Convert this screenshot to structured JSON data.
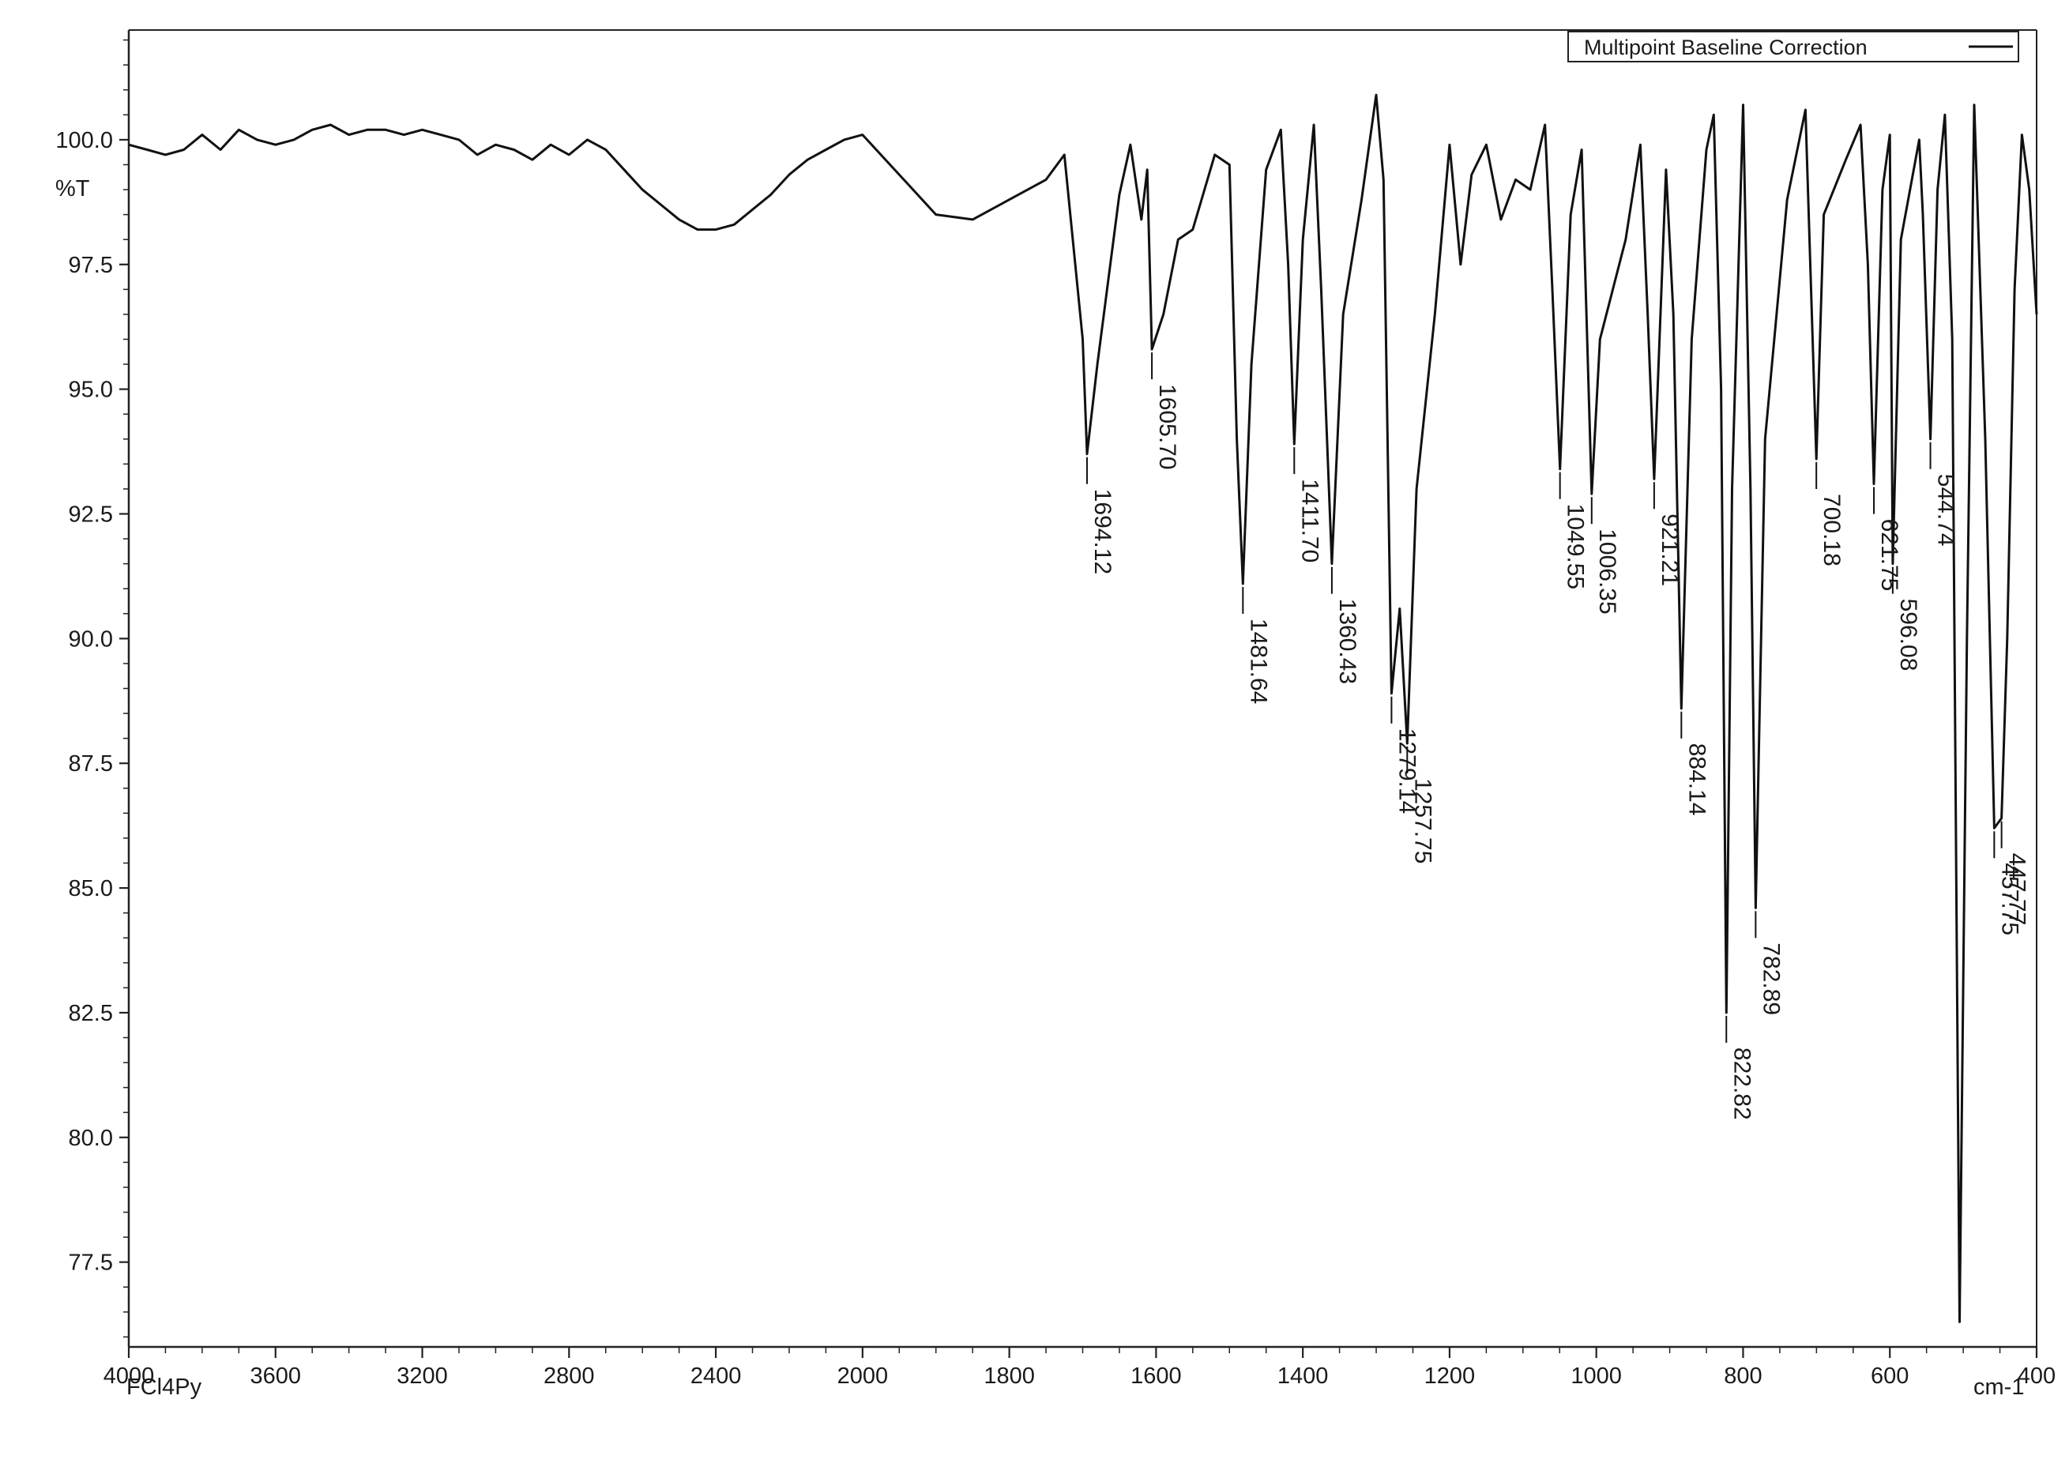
{
  "chart_data": {
    "type": "line",
    "legend": {
      "label": "Multipoint Baseline Correction",
      "placement": "top-right"
    },
    "y_axis_label": "%T",
    "x_axis_label": "cm-1",
    "sample_label": "FCl4Py",
    "xlim": [
      4000,
      400
    ],
    "ylim": [
      75.8,
      102.2
    ],
    "x_ticks": [
      4000,
      3600,
      3200,
      2800,
      2400,
      2000,
      1800,
      1600,
      1400,
      1200,
      1000,
      800,
      600,
      400
    ],
    "x_tick_labels": [
      "4000",
      "3600",
      "3200",
      "2800",
      "2400",
      "2000",
      "1800",
      "1600",
      "1400",
      "1200",
      "1000",
      "800",
      "600",
      "400"
    ],
    "y_ticks": [
      77.5,
      80.0,
      82.5,
      85.0,
      87.5,
      90.0,
      92.5,
      95.0,
      97.5,
      100.0
    ],
    "y_tick_labels": [
      "77.5",
      "80.0",
      "82.5",
      "85.0",
      "87.5",
      "90.0",
      "92.5",
      "95.0",
      "97.5",
      "100.0"
    ],
    "series": [
      {
        "name": "Multipoint Baseline Correction",
        "color": "#111111",
        "points": [
          [
            4000,
            99.9
          ],
          [
            3950,
            99.8
          ],
          [
            3900,
            99.7
          ],
          [
            3850,
            99.8
          ],
          [
            3800,
            100.1
          ],
          [
            3750,
            99.8
          ],
          [
            3700,
            100.2
          ],
          [
            3650,
            100.0
          ],
          [
            3600,
            99.9
          ],
          [
            3550,
            100.0
          ],
          [
            3500,
            100.2
          ],
          [
            3450,
            100.3
          ],
          [
            3400,
            100.1
          ],
          [
            3350,
            100.2
          ],
          [
            3300,
            100.2
          ],
          [
            3250,
            100.1
          ],
          [
            3200,
            100.2
          ],
          [
            3150,
            100.1
          ],
          [
            3100,
            100.0
          ],
          [
            3050,
            99.7
          ],
          [
            3000,
            99.9
          ],
          [
            2950,
            99.8
          ],
          [
            2900,
            99.6
          ],
          [
            2850,
            99.9
          ],
          [
            2800,
            99.7
          ],
          [
            2750,
            100.0
          ],
          [
            2700,
            99.8
          ],
          [
            2650,
            99.4
          ],
          [
            2600,
            99.0
          ],
          [
            2550,
            98.7
          ],
          [
            2500,
            98.4
          ],
          [
            2450,
            98.2
          ],
          [
            2400,
            98.2
          ],
          [
            2350,
            98.3
          ],
          [
            2300,
            98.6
          ],
          [
            2250,
            98.9
          ],
          [
            2200,
            99.3
          ],
          [
            2150,
            99.6
          ],
          [
            2100,
            99.8
          ],
          [
            2050,
            100.0
          ],
          [
            2000,
            100.1
          ],
          [
            1950,
            99.3
          ],
          [
            1900,
            98.5
          ],
          [
            1850,
            98.4
          ],
          [
            1800,
            98.8
          ],
          [
            1750,
            99.2
          ],
          [
            1725,
            99.7
          ],
          [
            1700,
            96.0
          ],
          [
            1694.12,
            93.7
          ],
          [
            1680,
            95.5
          ],
          [
            1650,
            98.9
          ],
          [
            1635,
            99.9
          ],
          [
            1620,
            98.4
          ],
          [
            1612,
            99.4
          ],
          [
            1605.7,
            95.8
          ],
          [
            1590,
            96.5
          ],
          [
            1570,
            98.0
          ],
          [
            1550,
            98.2
          ],
          [
            1520,
            99.7
          ],
          [
            1500,
            99.5
          ],
          [
            1490,
            94.0
          ],
          [
            1481.64,
            91.1
          ],
          [
            1470,
            95.5
          ],
          [
            1450,
            99.4
          ],
          [
            1430,
            100.2
          ],
          [
            1420,
            97.5
          ],
          [
            1411.7,
            93.9
          ],
          [
            1400,
            98.0
          ],
          [
            1385,
            100.3
          ],
          [
            1375,
            97.0
          ],
          [
            1360.43,
            91.5
          ],
          [
            1345,
            96.5
          ],
          [
            1320,
            98.8
          ],
          [
            1300,
            100.9
          ],
          [
            1290,
            99.2
          ],
          [
            1279.14,
            88.9
          ],
          [
            1268,
            90.6
          ],
          [
            1257.75,
            87.9
          ],
          [
            1245,
            93.0
          ],
          [
            1220,
            96.5
          ],
          [
            1200,
            99.9
          ],
          [
            1185,
            97.5
          ],
          [
            1170,
            99.3
          ],
          [
            1150,
            99.9
          ],
          [
            1130,
            98.4
          ],
          [
            1110,
            99.2
          ],
          [
            1090,
            99.0
          ],
          [
            1070,
            100.3
          ],
          [
            1060,
            97.0
          ],
          [
            1049.55,
            93.4
          ],
          [
            1035,
            98.5
          ],
          [
            1020,
            99.8
          ],
          [
            1006.35,
            92.9
          ],
          [
            995,
            96.0
          ],
          [
            960,
            98.0
          ],
          [
            940,
            99.9
          ],
          [
            930,
            96.5
          ],
          [
            921.21,
            93.2
          ],
          [
            905,
            99.4
          ],
          [
            895,
            96.5
          ],
          [
            884.14,
            88.6
          ],
          [
            870,
            96.0
          ],
          [
            850,
            99.8
          ],
          [
            840,
            100.5
          ],
          [
            830,
            95.0
          ],
          [
            822.82,
            82.5
          ],
          [
            815,
            93.0
          ],
          [
            800,
            100.7
          ],
          [
            790,
            93.0
          ],
          [
            782.89,
            84.6
          ],
          [
            770,
            94.0
          ],
          [
            740,
            98.8
          ],
          [
            715,
            100.6
          ],
          [
            700.18,
            93.6
          ],
          [
            690,
            98.5
          ],
          [
            660,
            99.6
          ],
          [
            640,
            100.3
          ],
          [
            630,
            97.5
          ],
          [
            621.75,
            93.1
          ],
          [
            610,
            99.0
          ],
          [
            600,
            100.1
          ],
          [
            596.08,
            91.5
          ],
          [
            585,
            98.0
          ],
          [
            560,
            100.0
          ],
          [
            555,
            98.5
          ],
          [
            544.74,
            94.0
          ],
          [
            535,
            99.0
          ],
          [
            525,
            100.5
          ],
          [
            515,
            96.0
          ],
          [
            505,
            76.3
          ],
          [
            495,
            90.0
          ],
          [
            485,
            100.7
          ],
          [
            470,
            94.0
          ],
          [
            457.75,
            86.2
          ],
          [
            447.77,
            86.4
          ],
          [
            440,
            90.0
          ],
          [
            430,
            97.0
          ],
          [
            420,
            100.1
          ],
          [
            410,
            99.0
          ],
          [
            400,
            96.5
          ]
        ]
      }
    ],
    "peaks": [
      {
        "x": 1694.12,
        "y": 93.7,
        "label": "1694.12"
      },
      {
        "x": 1605.7,
        "y": 95.8,
        "label": "1605.70"
      },
      {
        "x": 1481.64,
        "y": 91.1,
        "label": "1481.64"
      },
      {
        "x": 1411.7,
        "y": 93.9,
        "label": "1411.70"
      },
      {
        "x": 1360.43,
        "y": 91.5,
        "label": "1360.43"
      },
      {
        "x": 1279.14,
        "y": 88.9,
        "label": "1279.14"
      },
      {
        "x": 1257.75,
        "y": 87.9,
        "label": "1257.75"
      },
      {
        "x": 1049.55,
        "y": 93.4,
        "label": "1049.55"
      },
      {
        "x": 1006.35,
        "y": 92.9,
        "label": "1006.35"
      },
      {
        "x": 921.21,
        "y": 93.2,
        "label": "921.21"
      },
      {
        "x": 884.14,
        "y": 88.6,
        "label": "884.14"
      },
      {
        "x": 822.82,
        "y": 82.5,
        "label": "822.82"
      },
      {
        "x": 782.89,
        "y": 84.6,
        "label": "782.89"
      },
      {
        "x": 700.18,
        "y": 93.6,
        "label": "700.18"
      },
      {
        "x": 621.75,
        "y": 93.1,
        "label": "621.75"
      },
      {
        "x": 596.08,
        "y": 91.5,
        "label": "596.08"
      },
      {
        "x": 544.74,
        "y": 94.0,
        "label": "544.74"
      },
      {
        "x": 457.75,
        "y": 86.2,
        "label": "457.75"
      },
      {
        "x": 447.77,
        "y": 86.4,
        "label": "447.77"
      }
    ]
  }
}
